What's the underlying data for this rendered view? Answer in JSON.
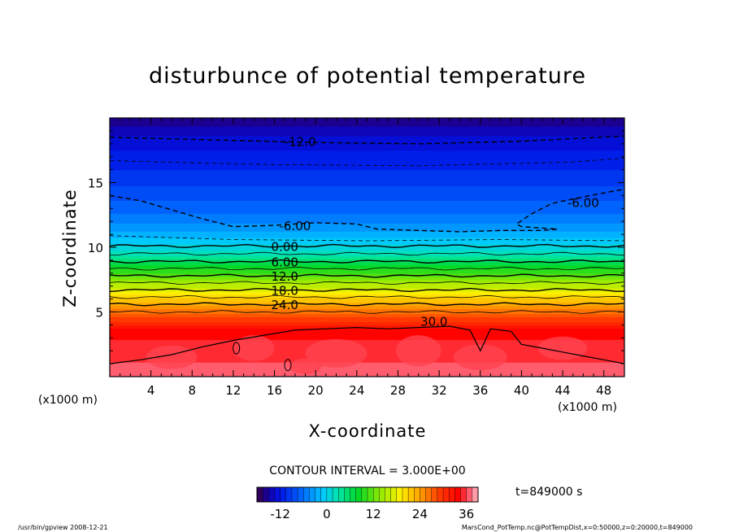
{
  "chart_data": {
    "type": "contour",
    "title": "disturbunce of potential temperature",
    "xlabel": "X-coordinate",
    "ylabel": "Z-coordinate",
    "x_unit_left": "(x1000 m)",
    "x_unit_right": "(x1000 m)",
    "xlim": [
      0,
      50
    ],
    "ylim": [
      0,
      20
    ],
    "x_ticks": [
      4,
      8,
      12,
      16,
      20,
      24,
      28,
      32,
      36,
      40,
      44,
      48
    ],
    "y_ticks": [
      5,
      10,
      15
    ],
    "contour_interval_text": "CONTOUR INTERVAL = 3.000E+00",
    "time_text": "t=849000 s",
    "colorbar": {
      "min": -18,
      "max": 39,
      "ticks": [
        -12,
        0,
        12,
        24,
        36
      ]
    },
    "contour_labels": [
      {
        "text": "-12.0",
        "x": 18.5,
        "z": 18.2,
        "value": -12
      },
      {
        "text": "-6.00",
        "x": 18.0,
        "z": 11.7,
        "value": -6
      },
      {
        "text": "-6.00",
        "x": 46.0,
        "z": 13.5,
        "value": -6
      },
      {
        "text": "0.00",
        "x": 17.0,
        "z": 10.1,
        "value": 0
      },
      {
        "text": "6.00",
        "x": 17.0,
        "z": 8.9,
        "value": 6
      },
      {
        "text": "12.0",
        "x": 17.0,
        "z": 7.8,
        "value": 12
      },
      {
        "text": "18.0",
        "x": 17.0,
        "z": 6.7,
        "value": 18
      },
      {
        "text": "24.0",
        "x": 17.0,
        "z": 5.6,
        "value": 24
      },
      {
        "text": "30.0",
        "x": 31.5,
        "z": 4.3,
        "value": 30
      }
    ],
    "vertical_profile": [
      {
        "z": 0,
        "value": 37
      },
      {
        "z": 3.5,
        "value": 34
      },
      {
        "z": 4.5,
        "value": 29
      },
      {
        "z": 5.5,
        "value": 24
      },
      {
        "z": 7.0,
        "value": 16
      },
      {
        "z": 8.5,
        "value": 8
      },
      {
        "z": 9.6,
        "value": 2
      },
      {
        "z": 10.5,
        "value": -1
      },
      {
        "z": 12.0,
        "value": -5
      },
      {
        "z": 14.0,
        "value": -8
      },
      {
        "z": 16.0,
        "value": -10.5
      },
      {
        "z": 18.0,
        "value": -12.5
      },
      {
        "z": 20.0,
        "value": -16
      }
    ]
  },
  "footer": {
    "left": "/usr/bin/gpview   2008-12-21",
    "right": "MarsCond_PotTemp.nc@PotTempDist,x=0:50000,z=0:20000,t=849000"
  }
}
